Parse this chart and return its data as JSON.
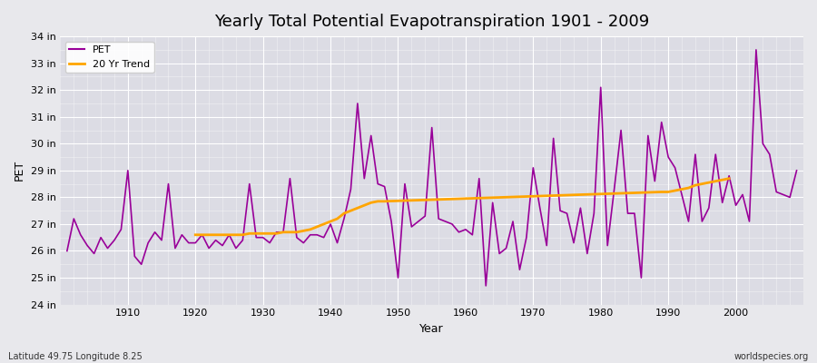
{
  "title": "Yearly Total Potential Evapotranspiration 1901 - 2009",
  "xlabel": "Year",
  "ylabel": "PET",
  "lat_lon_label": "Latitude 49.75 Longitude 8.25",
  "source_label": "worldspecies.org",
  "pet_color": "#990099",
  "trend_color": "#FFA500",
  "background_color": "#E8E8EC",
  "plot_bg_color": "#DCDCE4",
  "ylim": [
    24,
    34
  ],
  "yticks": [
    24,
    25,
    26,
    27,
    28,
    29,
    30,
    31,
    32,
    33,
    34
  ],
  "ytick_labels": [
    "24 in",
    "25 in",
    "26 in",
    "27 in",
    "28 in",
    "29 in",
    "30 in",
    "31 in",
    "32 in",
    "33 in",
    "34 in"
  ],
  "years": [
    1901,
    1902,
    1903,
    1904,
    1905,
    1906,
    1907,
    1908,
    1909,
    1910,
    1911,
    1912,
    1913,
    1914,
    1915,
    1916,
    1917,
    1918,
    1919,
    1920,
    1921,
    1922,
    1923,
    1924,
    1925,
    1926,
    1927,
    1928,
    1929,
    1930,
    1931,
    1932,
    1933,
    1934,
    1935,
    1936,
    1937,
    1938,
    1939,
    1940,
    1941,
    1942,
    1943,
    1944,
    1945,
    1946,
    1947,
    1948,
    1949,
    1950,
    1951,
    1952,
    1953,
    1954,
    1955,
    1956,
    1957,
    1958,
    1959,
    1960,
    1961,
    1962,
    1963,
    1964,
    1965,
    1966,
    1967,
    1968,
    1969,
    1970,
    1971,
    1972,
    1973,
    1974,
    1975,
    1976,
    1977,
    1978,
    1979,
    1980,
    1981,
    1982,
    1983,
    1984,
    1985,
    1986,
    1987,
    1988,
    1989,
    1990,
    1991,
    1992,
    1993,
    1994,
    1995,
    1996,
    1997,
    1998,
    1999,
    2000,
    2001,
    2002,
    2003,
    2004,
    2005,
    2006,
    2007,
    2008,
    2009
  ],
  "pet_values": [
    26.0,
    27.2,
    26.6,
    26.2,
    25.9,
    26.5,
    26.1,
    26.4,
    26.8,
    29.0,
    25.8,
    25.5,
    26.3,
    26.7,
    26.4,
    28.5,
    26.1,
    26.6,
    26.3,
    26.3,
    26.6,
    26.1,
    26.4,
    26.2,
    26.6,
    26.1,
    26.4,
    28.5,
    26.5,
    26.5,
    26.3,
    26.7,
    26.7,
    28.7,
    26.5,
    26.3,
    26.6,
    26.6,
    26.5,
    27.0,
    26.3,
    27.2,
    28.3,
    31.5,
    28.7,
    30.3,
    28.5,
    28.4,
    27.1,
    25.0,
    28.5,
    26.9,
    27.1,
    27.3,
    30.6,
    27.2,
    27.1,
    27.0,
    26.7,
    26.8,
    26.6,
    28.7,
    24.7,
    27.8,
    25.9,
    26.1,
    27.1,
    25.3,
    26.5,
    29.1,
    27.6,
    26.2,
    30.2,
    27.5,
    27.4,
    26.3,
    27.6,
    25.9,
    27.4,
    32.1,
    26.2,
    28.3,
    30.5,
    27.4,
    27.4,
    25.0,
    30.3,
    28.6,
    30.8,
    29.5,
    29.1,
    28.1,
    27.1,
    29.6,
    27.1,
    27.6,
    29.6,
    27.8,
    28.8,
    27.7,
    28.1,
    27.1,
    33.5,
    30.0,
    29.6,
    28.2,
    28.1,
    28.0,
    29.0
  ],
  "trend_years": [
    1920,
    1921,
    1922,
    1923,
    1924,
    1925,
    1926,
    1927,
    1928,
    1929,
    1930,
    1931,
    1932,
    1933,
    1934,
    1935,
    1936,
    1937,
    1938,
    1939,
    1940,
    1941,
    1942,
    1943,
    1944,
    1945,
    1946,
    1947,
    1948,
    1989,
    1990,
    1991,
    1992,
    1993,
    1994,
    1995,
    1996,
    1997,
    1998,
    1999
  ],
  "trend_values": [
    26.6,
    26.6,
    26.6,
    26.6,
    26.6,
    26.6,
    26.6,
    26.6,
    26.65,
    26.65,
    26.65,
    26.65,
    26.65,
    26.7,
    26.7,
    26.7,
    26.75,
    26.8,
    26.9,
    27.0,
    27.1,
    27.2,
    27.4,
    27.5,
    27.6,
    27.7,
    27.8,
    27.85,
    27.85,
    28.2,
    28.2,
    28.25,
    28.3,
    28.35,
    28.45,
    28.5,
    28.55,
    28.6,
    28.65,
    28.7
  ]
}
